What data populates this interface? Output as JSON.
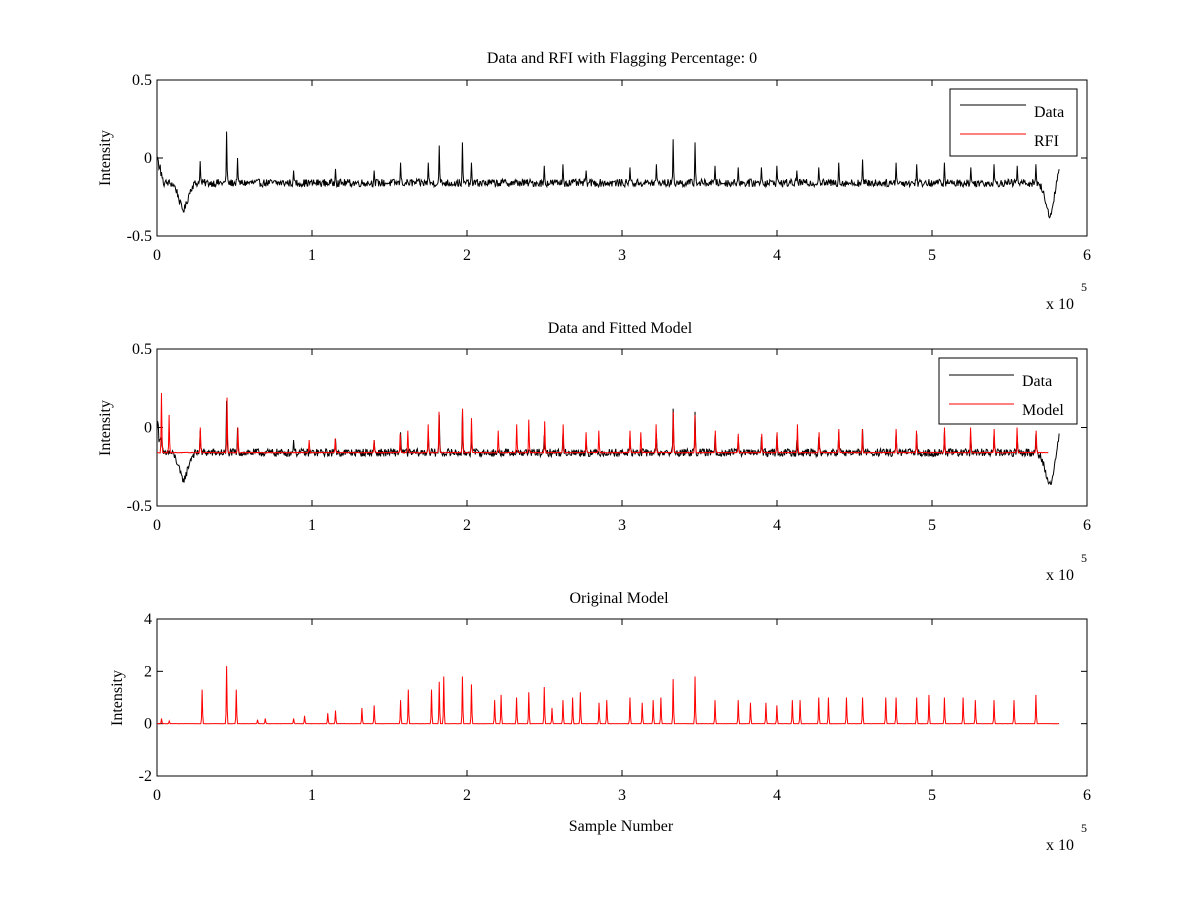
{
  "chart_data": [
    {
      "type": "line",
      "title": "Data and RFI with Flagging Percentage: 0",
      "xlabel": "",
      "ylabel": "Intensity",
      "xlim": [
        0,
        600000
      ],
      "ylim": [
        -0.5,
        0.5
      ],
      "xticks": [
        0,
        100000,
        200000,
        300000,
        400000,
        500000,
        600000
      ],
      "xtick_labels": [
        "0",
        "1",
        "2",
        "3",
        "4",
        "5",
        "6"
      ],
      "yticks": [
        -0.5,
        0,
        0.5
      ],
      "ytick_labels": [
        "-0.5",
        "0",
        "0.5"
      ],
      "x_exponent": {
        "base": "x 10",
        "power": "5"
      },
      "legend": {
        "position": "top-right",
        "entries": [
          {
            "label": "Data",
            "color": "#000000"
          },
          {
            "label": "RFI",
            "color": "#ff0000"
          }
        ]
      },
      "series": [
        {
          "name": "Data",
          "color": "#000000",
          "kind": "data_trace",
          "x_range": [
            0,
            582000
          ],
          "baseline": -0.16,
          "noise_amplitude": 0.05,
          "spikes": [
            [
              28000,
              -0.02
            ],
            [
              45000,
              0.17
            ],
            [
              52000,
              0.0
            ],
            [
              88000,
              -0.08
            ],
            [
              115000,
              -0.07
            ],
            [
              140000,
              -0.08
            ],
            [
              157000,
              -0.03
            ],
            [
              175000,
              -0.03
            ],
            [
              182000,
              0.08
            ],
            [
              197000,
              0.1
            ],
            [
              203000,
              -0.03
            ],
            [
              250000,
              -0.05
            ],
            [
              262000,
              -0.04
            ],
            [
              277000,
              -0.08
            ],
            [
              305000,
              -0.06
            ],
            [
              322000,
              -0.04
            ],
            [
              333000,
              0.12
            ],
            [
              347000,
              0.1
            ],
            [
              360000,
              -0.05
            ],
            [
              375000,
              -0.06
            ],
            [
              390000,
              -0.06
            ],
            [
              400000,
              -0.05
            ],
            [
              413000,
              -0.08
            ],
            [
              427000,
              -0.06
            ],
            [
              440000,
              -0.03
            ],
            [
              455000,
              -0.01
            ],
            [
              477000,
              -0.03
            ],
            [
              490000,
              -0.04
            ],
            [
              508000,
              -0.03
            ],
            [
              525000,
              -0.06
            ],
            [
              540000,
              -0.04
            ],
            [
              555000,
              -0.05
            ],
            [
              567000,
              -0.04
            ]
          ],
          "dips": [
            [
              17000,
              -0.33
            ],
            [
              576000,
              -0.36
            ]
          ]
        },
        {
          "name": "RFI",
          "color": "#ff0000",
          "kind": "empty"
        }
      ]
    },
    {
      "type": "line",
      "title": "Data and Fitted Model",
      "xlabel": "",
      "ylabel": "Intensity",
      "xlim": [
        0,
        600000
      ],
      "ylim": [
        -0.5,
        0.5
      ],
      "xticks": [
        0,
        100000,
        200000,
        300000,
        400000,
        500000,
        600000
      ],
      "xtick_labels": [
        "0",
        "1",
        "2",
        "3",
        "4",
        "5",
        "6"
      ],
      "yticks": [
        -0.5,
        0,
        0.5
      ],
      "ytick_labels": [
        "-0.5",
        "0",
        "0.5"
      ],
      "x_exponent": {
        "base": "x 10",
        "power": "5"
      },
      "legend": {
        "position": "top-right",
        "entries": [
          {
            "label": "Data",
            "color": "#000000"
          },
          {
            "label": "Model",
            "color": "#ff0000"
          }
        ]
      },
      "series": [
        {
          "name": "Data",
          "color": "#000000",
          "kind": "data_trace",
          "x_range": [
            0,
            582000
          ],
          "baseline": -0.16,
          "noise_amplitude": 0.05,
          "spikes": [
            [
              28000,
              -0.02
            ],
            [
              45000,
              0.17
            ],
            [
              52000,
              0.0
            ],
            [
              88000,
              -0.08
            ],
            [
              115000,
              -0.07
            ],
            [
              140000,
              -0.08
            ],
            [
              157000,
              -0.03
            ],
            [
              175000,
              -0.03
            ],
            [
              182000,
              0.08
            ],
            [
              197000,
              0.1
            ],
            [
              203000,
              -0.03
            ],
            [
              250000,
              -0.05
            ],
            [
              262000,
              -0.04
            ],
            [
              277000,
              -0.08
            ],
            [
              305000,
              -0.06
            ],
            [
              322000,
              -0.04
            ],
            [
              333000,
              0.12
            ],
            [
              347000,
              0.1
            ],
            [
              360000,
              -0.05
            ],
            [
              375000,
              -0.06
            ],
            [
              390000,
              -0.06
            ],
            [
              400000,
              -0.05
            ],
            [
              413000,
              -0.08
            ],
            [
              427000,
              -0.06
            ],
            [
              440000,
              -0.03
            ],
            [
              455000,
              -0.01
            ],
            [
              477000,
              -0.03
            ],
            [
              490000,
              -0.04
            ],
            [
              508000,
              -0.03
            ],
            [
              525000,
              -0.06
            ],
            [
              540000,
              -0.04
            ],
            [
              555000,
              -0.05
            ],
            [
              567000,
              -0.04
            ]
          ],
          "dips": [
            [
              17000,
              -0.33
            ],
            [
              576000,
              -0.36
            ]
          ]
        },
        {
          "name": "Model",
          "color": "#ff0000",
          "kind": "model_trace",
          "x_range": [
            0,
            575000
          ],
          "baseline": -0.16,
          "spikes": [
            [
              3000,
              0.22
            ],
            [
              8000,
              0.08
            ],
            [
              28000,
              0.0
            ],
            [
              45000,
              0.19
            ],
            [
              52000,
              0.0
            ],
            [
              98000,
              -0.08
            ],
            [
              115000,
              -0.07
            ],
            [
              140000,
              -0.08
            ],
            [
              157000,
              -0.04
            ],
            [
              162000,
              -0.02
            ],
            [
              175000,
              0.02
            ],
            [
              182000,
              0.1
            ],
            [
              197000,
              0.12
            ],
            [
              203000,
              0.06
            ],
            [
              220000,
              -0.02
            ],
            [
              232000,
              0.02
            ],
            [
              240000,
              0.05
            ],
            [
              250000,
              0.04
            ],
            [
              262000,
              0.02
            ],
            [
              277000,
              -0.03
            ],
            [
              285000,
              -0.02
            ],
            [
              305000,
              -0.02
            ],
            [
              312000,
              -0.03
            ],
            [
              322000,
              0.02
            ],
            [
              333000,
              0.1
            ],
            [
              347000,
              0.08
            ],
            [
              360000,
              -0.02
            ],
            [
              375000,
              -0.04
            ],
            [
              390000,
              -0.04
            ],
            [
              400000,
              -0.03
            ],
            [
              413000,
              0.02
            ],
            [
              427000,
              -0.03
            ],
            [
              440000,
              -0.01
            ],
            [
              455000,
              -0.01
            ],
            [
              477000,
              -0.01
            ],
            [
              490000,
              -0.02
            ],
            [
              508000,
              0.0
            ],
            [
              525000,
              0.0
            ],
            [
              540000,
              -0.01
            ],
            [
              555000,
              0.0
            ],
            [
              567000,
              -0.02
            ]
          ]
        }
      ]
    },
    {
      "type": "line",
      "title": "Original Model",
      "xlabel": "Sample Number",
      "ylabel": "Intensity",
      "xlim": [
        0,
        600000
      ],
      "ylim": [
        -2,
        4
      ],
      "xticks": [
        0,
        100000,
        200000,
        300000,
        400000,
        500000,
        600000
      ],
      "xtick_labels": [
        "0",
        "1",
        "2",
        "3",
        "4",
        "5",
        "6"
      ],
      "yticks": [
        -2,
        0,
        2,
        4
      ],
      "ytick_labels": [
        "-2",
        "0",
        "2",
        "4"
      ],
      "x_exponent": {
        "base": "x 10",
        "power": "5"
      },
      "series": [
        {
          "name": "Original Model",
          "color": "#ff0000",
          "kind": "model_trace",
          "x_range": [
            0,
            582000
          ],
          "baseline": 0,
          "spikes": [
            [
              3000,
              0.2
            ],
            [
              8000,
              0.1
            ],
            [
              29000,
              1.3
            ],
            [
              45000,
              2.2
            ],
            [
              51000,
              1.3
            ],
            [
              65000,
              0.15
            ],
            [
              70000,
              0.2
            ],
            [
              88000,
              0.2
            ],
            [
              95000,
              0.3
            ],
            [
              110000,
              0.4
            ],
            [
              115000,
              0.5
            ],
            [
              132000,
              0.6
            ],
            [
              140000,
              0.7
            ],
            [
              157000,
              0.9
            ],
            [
              162000,
              1.3
            ],
            [
              177000,
              1.3
            ],
            [
              182000,
              1.6
            ],
            [
              185000,
              1.8
            ],
            [
              197000,
              1.8
            ],
            [
              203000,
              1.5
            ],
            [
              218000,
              0.9
            ],
            [
              222000,
              1.1
            ],
            [
              232000,
              1.0
            ],
            [
              240000,
              1.2
            ],
            [
              250000,
              1.4
            ],
            [
              255000,
              0.6
            ],
            [
              262000,
              0.9
            ],
            [
              268000,
              1.0
            ],
            [
              273000,
              1.2
            ],
            [
              285000,
              0.8
            ],
            [
              290000,
              0.9
            ],
            [
              305000,
              1.0
            ],
            [
              313000,
              0.8
            ],
            [
              320000,
              0.9
            ],
            [
              325000,
              1.0
            ],
            [
              333000,
              1.7
            ],
            [
              347000,
              1.8
            ],
            [
              360000,
              0.9
            ],
            [
              375000,
              0.9
            ],
            [
              383000,
              0.8
            ],
            [
              393000,
              0.8
            ],
            [
              400000,
              0.7
            ],
            [
              410000,
              0.9
            ],
            [
              415000,
              0.9
            ],
            [
              427000,
              1.0
            ],
            [
              433000,
              1.0
            ],
            [
              445000,
              1.0
            ],
            [
              455000,
              1.0
            ],
            [
              470000,
              1.0
            ],
            [
              477000,
              1.0
            ],
            [
              490000,
              1.0
            ],
            [
              498000,
              1.1
            ],
            [
              508000,
              1.0
            ],
            [
              520000,
              1.0
            ],
            [
              528000,
              0.9
            ],
            [
              540000,
              0.9
            ],
            [
              553000,
              0.9
            ],
            [
              567000,
              1.1
            ]
          ]
        }
      ]
    }
  ]
}
